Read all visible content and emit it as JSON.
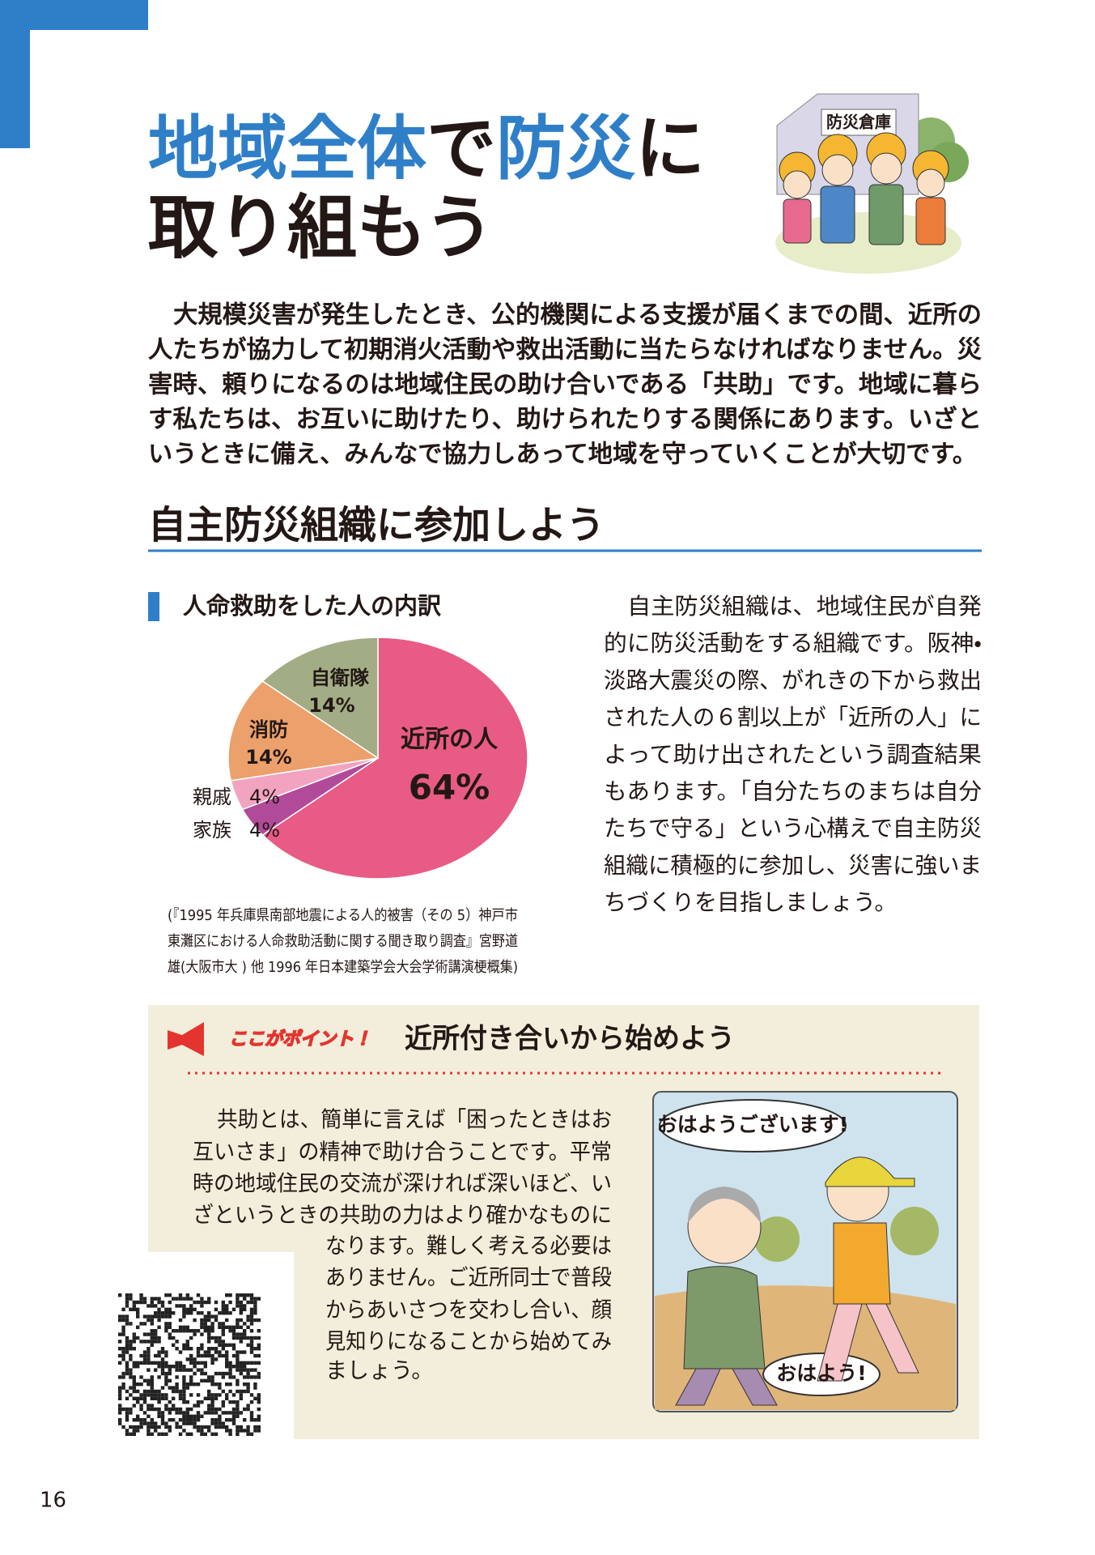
{
  "header": {
    "title_line1": [
      "地域全体",
      "で",
      "防災",
      "に"
    ],
    "title_line2": "取り組もう",
    "sign": "防災倉庫"
  },
  "intro": {
    "lines": [
      "大規模災害が発生したとき、公的機関による支援が届くまでの間、近所の",
      "人たちが協力して初期消火活動や救出活動に当たらなければなりません。災",
      "害時、頼りになるのは地域住民の助け合いである「共助」です。地域に暮ら",
      "す私たちは、お互いに助けたり、助けられたりする関係にあります。いざと",
      "いうときに備え、みんなで協力しあって地域を守っていくことが大切です。"
    ]
  },
  "section": {
    "heading": "自主防災組織に参加しよう",
    "body_lines": [
      "自主防災組織は、地域住民が自発",
      "的に防災活動をする組織です。阪神・",
      "淡路大震災の際、がれきの下から救出",
      "された人の６割以上が「近所の人」に",
      "よって助け出されたという調査結果",
      "もあります。「自分たちのまちは自分",
      "たちで守る」という心構えで自主防災",
      "組織に積極的に参加し、災害に強いま",
      "ちづくりを目指しましょう。"
    ],
    "source_lines": [
      "(『1995 年兵庫県南部地震による人的被害（その 5）神戸市",
      "東灘区における人命救助活動に関する聞き取り調査』宮野道",
      "雄(大阪市大 ) 他 1996 年日本建築学会大会学術講演梗概集)"
    ]
  },
  "chart_data": {
    "type": "pie",
    "title": "人命救助をした人の内訳",
    "categories": [
      "近所の人",
      "家族",
      "親戚",
      "消防",
      "自衛隊"
    ],
    "values": [
      64,
      4,
      4,
      14,
      14
    ],
    "value_labels": [
      "64%",
      "4%",
      "4%",
      "14%",
      "14%"
    ],
    "colors": [
      "#e85b84",
      "#b24a9a",
      "#f2a3c0",
      "#eca06b",
      "#a3ad85"
    ]
  },
  "point": {
    "tag": "ここがポイント！",
    "heading": "近所付き合いから始めよう",
    "lines": [
      "共助とは、簡単に言えば「困ったときはお",
      "互いさま」の精神で助け合うことです。平常",
      "時の地域住民の交流が深ければ深いほど、い",
      "ざというときの共助の力はより確かなものに",
      "なります。難しく考える必要は",
      "ありません。ご近所同士で普段",
      "からあいさつを交わし合い、顔",
      "見知りになることから始めてみ",
      "ましょう。"
    ],
    "speech": [
      "おはようございます!",
      "おはよう!"
    ]
  },
  "page_number": "16"
}
